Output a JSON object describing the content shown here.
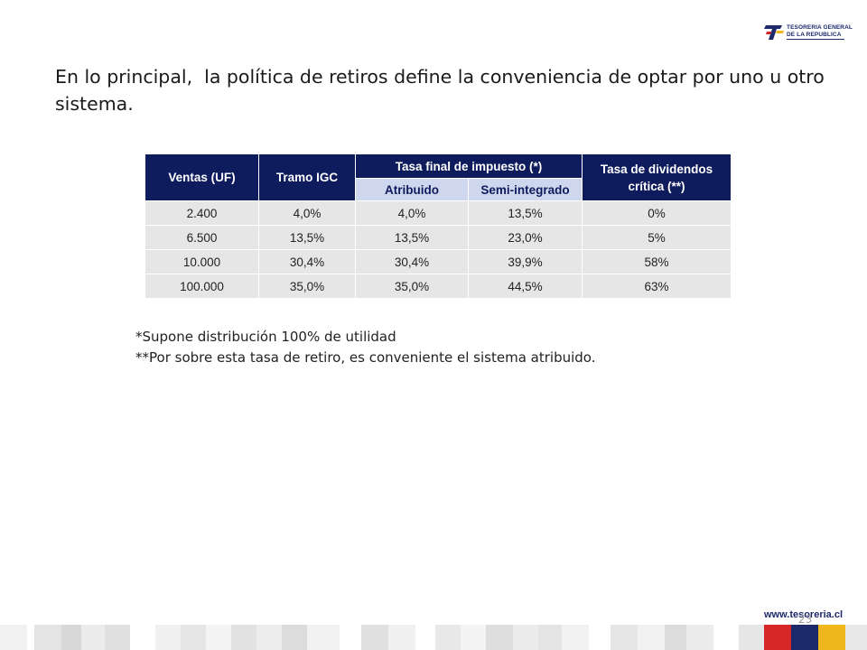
{
  "logo": {
    "line1": "TESORERIA GENERAL",
    "line2": "DE LA REPUBLICA"
  },
  "heading": "En lo principal,  la política de retiros define la conveniencia de optar por uno u otro sistema.",
  "table": {
    "headers": {
      "ventas": "Ventas (UF)",
      "tramo": "Tramo IGC",
      "tasa_final": "Tasa final de impuesto (*)",
      "tasa_div": "Tasa de dividendos crítica (**)",
      "atribuido": "Atribuido",
      "semi": "Semi-integrado"
    },
    "rows": [
      [
        "2.400",
        "4,0%",
        "4,0%",
        "13,5%",
        "0%"
      ],
      [
        "6.500",
        "13,5%",
        "13,5%",
        "23,0%",
        "5%"
      ],
      [
        "10.000",
        "30,4%",
        "30,4%",
        "39,9%",
        "58%"
      ],
      [
        "100.000",
        "35,0%",
        "35,0%",
        "44,5%",
        "63%"
      ]
    ]
  },
  "notes": [
    "*Supone distribución 100% de utilidad",
    "**Por sobre esta tasa de retiro, es conveniente el sistema atribuido."
  ],
  "footer": {
    "url": "www.tesoreria.cl",
    "page_number": "23"
  },
  "colors": {
    "header_bg": "#0e1b5c",
    "subheader_bg": "#cfd7ee",
    "cell_bg": "#e6e6e6",
    "brand_red": "#d62828",
    "brand_yellow": "#f0b71c"
  }
}
